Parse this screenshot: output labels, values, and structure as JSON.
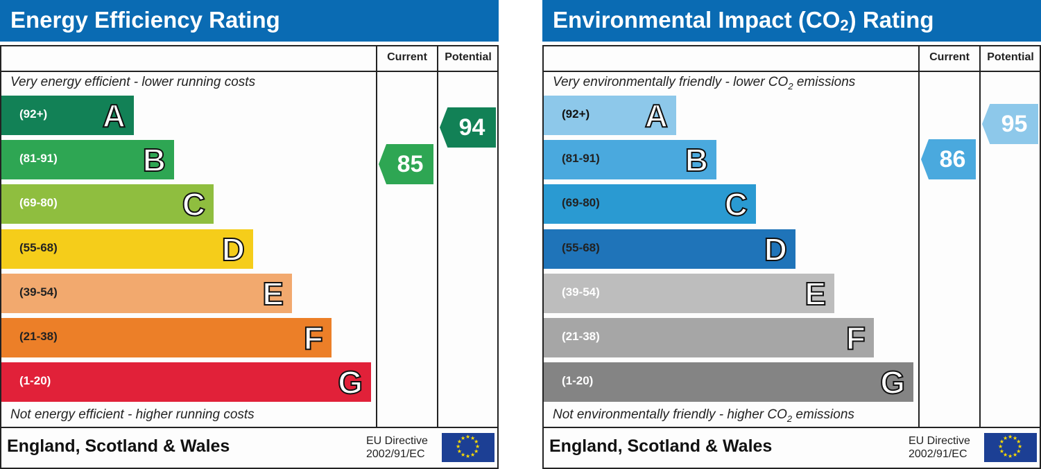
{
  "chart_data": [
    {
      "type": "bar",
      "title": "Energy Efficiency Rating",
      "columns": [
        "Current",
        "Potential"
      ],
      "top_note": "Very energy efficient - lower running costs",
      "bottom_note": "Not energy efficient - higher running costs",
      "bands": [
        {
          "letter": "A",
          "range": "(92+)",
          "color": "#128156"
        },
        {
          "letter": "B",
          "range": "(81-91)",
          "color": "#2ea653"
        },
        {
          "letter": "C",
          "range": "(69-80)",
          "color": "#8fbe3f"
        },
        {
          "letter": "D",
          "range": "(55-68)",
          "color": "#f5cd1a"
        },
        {
          "letter": "E",
          "range": "(39-54)",
          "color": "#f2a96e"
        },
        {
          "letter": "F",
          "range": "(21-38)",
          "color": "#ec7f28"
        },
        {
          "letter": "G",
          "range": "(1-20)",
          "color": "#e12139"
        }
      ],
      "current": {
        "value": 85,
        "band": "B",
        "color": "#2ea653"
      },
      "potential": {
        "value": 94,
        "band": "A",
        "color": "#128156"
      },
      "footer": "England, Scotland & Wales",
      "directive_line1": "EU Directive",
      "directive_line2": "2002/91/EC"
    },
    {
      "type": "bar",
      "title": "Environmental Impact (CO",
      "title_sub": "2",
      "title_end": ") Rating",
      "columns": [
        "Current",
        "Potential"
      ],
      "top_note": "Very environmentally friendly - lower CO",
      "top_note_end": " emissions",
      "bottom_note": "Not environmentally friendly - higher CO",
      "bottom_note_end": " emissions",
      "bands": [
        {
          "letter": "A",
          "range": "(92+)",
          "color": "#8dc8ea"
        },
        {
          "letter": "B",
          "range": "(81-91)",
          "color": "#4aa9de"
        },
        {
          "letter": "C",
          "range": "(69-80)",
          "color": "#2a9ad2"
        },
        {
          "letter": "D",
          "range": "(55-68)",
          "color": "#1f74b9"
        },
        {
          "letter": "E",
          "range": "(39-54)",
          "color": "#bdbdbd"
        },
        {
          "letter": "F",
          "range": "(21-38)",
          "color": "#a6a6a6"
        },
        {
          "letter": "G",
          "range": "(1-20)",
          "color": "#848484"
        }
      ],
      "current": {
        "value": 86,
        "band": "B",
        "color": "#4aa9de"
      },
      "potential": {
        "value": 95,
        "band": "A",
        "color": "#8dc8ea"
      },
      "footer": "England, Scotland & Wales",
      "directive_line1": "EU Directive",
      "directive_line2": "2002/91/EC"
    }
  ]
}
